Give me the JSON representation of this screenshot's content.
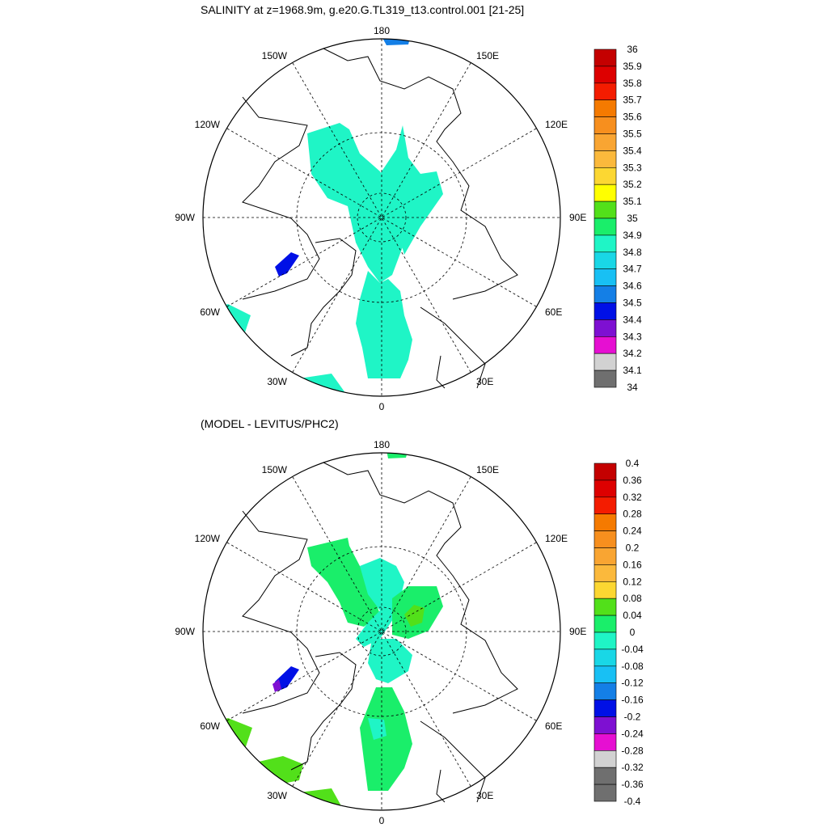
{
  "top_panel": {
    "title": "SALINITY at z=1968.9m, g.e20.G.TL319_t13.control.001 [21-25]",
    "longitude_labels": [
      "180",
      "150W",
      "150E",
      "120W",
      "120E",
      "90W",
      "90E",
      "60W",
      "60E",
      "30W",
      "30E",
      "0"
    ],
    "colorbar": {
      "labels": [
        "36",
        "35.9",
        "35.8",
        "35.7",
        "35.6",
        "35.5",
        "35.4",
        "35.3",
        "35.2",
        "35.1",
        "35",
        "34.9",
        "34.8",
        "34.7",
        "34.6",
        "34.5",
        "34.4",
        "34.3",
        "34.2",
        "34.1",
        "34"
      ],
      "colors": [
        "#c40000",
        "#dd0000",
        "#f41c00",
        "#f57a00",
        "#f78f1e",
        "#f9a532",
        "#fbb93c",
        "#fcd732",
        "#ffff00",
        "#52e01a",
        "#1aee6a",
        "#1ff5c6",
        "#19d7e6",
        "#18c0f4",
        "#147fe6",
        "#0010e6",
        "#7e10d2",
        "#e60fd2",
        "#d2d2d2",
        "#6f6f6f"
      ]
    }
  },
  "bottom_panel": {
    "title": "(MODEL - LEVITUS/PHC2)",
    "longitude_labels": [
      "180",
      "150W",
      "150E",
      "120W",
      "120E",
      "90W",
      "90E",
      "60W",
      "60E",
      "30W",
      "30E",
      "0"
    ],
    "colorbar": {
      "labels": [
        "0.4",
        "0.36",
        "0.32",
        "0.28",
        "0.24",
        "0.2",
        "0.16",
        "0.12",
        "0.08",
        "0.04",
        "0",
        "-0.04",
        "-0.08",
        "-0.12",
        "-0.16",
        "-0.2",
        "-0.24",
        "-0.28",
        "-0.32",
        "-0.36",
        "-0.4"
      ],
      "colors": [
        "#c40000",
        "#dd0000",
        "#f41c00",
        "#f57a00",
        "#f78f1e",
        "#f9a532",
        "#fbb93c",
        "#fcd732",
        "#52e01a",
        "#1aee6a",
        "#1ff5c6",
        "#19d7e6",
        "#18c0f4",
        "#147fe6",
        "#0010e6",
        "#7e10d2",
        "#e60fd2",
        "#d2d2d2",
        "#6f6f6f",
        "#6f6f6f"
      ]
    }
  }
}
